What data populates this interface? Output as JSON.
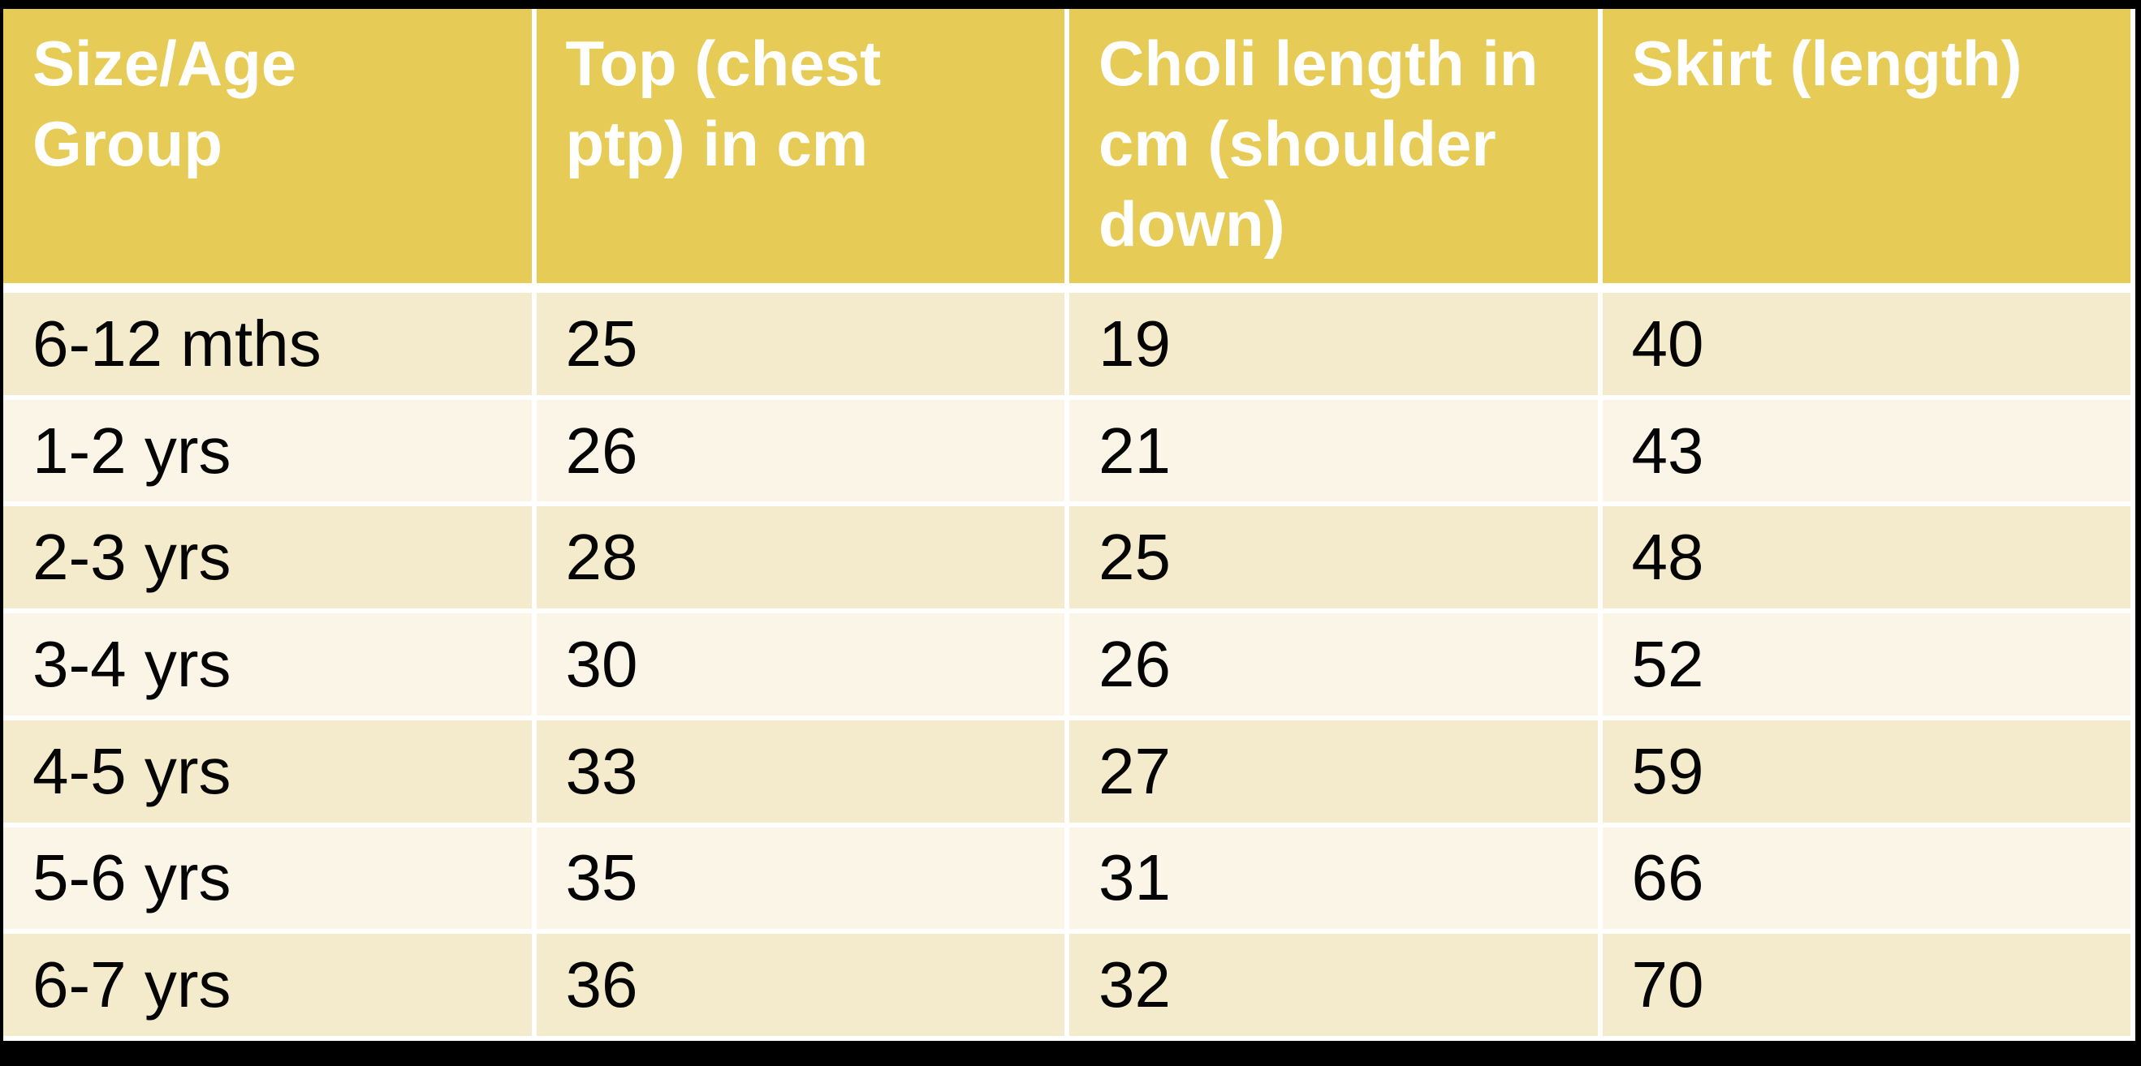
{
  "colors": {
    "page_bg": "#000000",
    "header_bg": "#E6CC56",
    "header_text": "#FFFFFF",
    "row_dark": "#F4EBCD",
    "row_light": "#FBF5E8",
    "grid": "#FFFFFF",
    "cell_text": "#050505"
  },
  "chart_data": {
    "type": "table",
    "columns": [
      "Size/Age Group",
      "Top (chest ptp) in cm",
      "Choli length in cm (shoulder down)",
      "Skirt (length)"
    ],
    "rows": [
      [
        "6-12 mths",
        "25",
        "19",
        "40"
      ],
      [
        "1-2 yrs",
        "26",
        "21",
        "43"
      ],
      [
        "2-3 yrs",
        "28",
        "25",
        "48"
      ],
      [
        "3-4 yrs",
        "30",
        "26",
        "52"
      ],
      [
        "4-5 yrs",
        "33",
        "27",
        "59"
      ],
      [
        "5-6 yrs",
        "35",
        "31",
        "66"
      ],
      [
        "6-7 yrs",
        "36",
        "32",
        "70"
      ]
    ]
  }
}
